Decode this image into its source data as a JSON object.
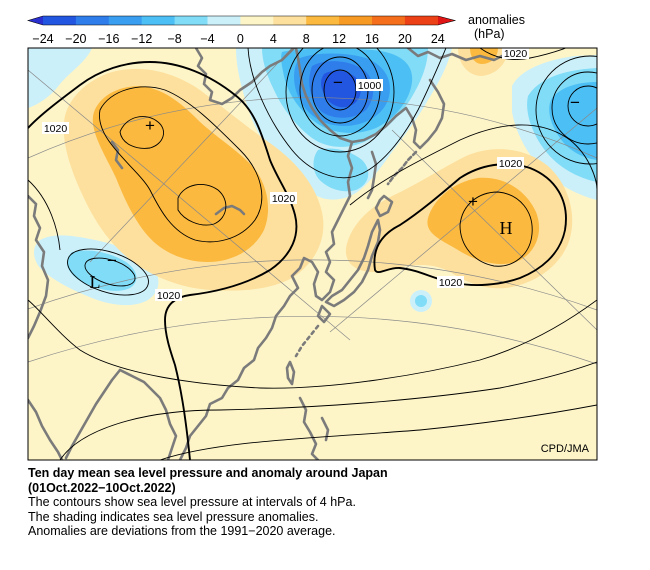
{
  "colorbar": {
    "title": "anomalies",
    "unit": "(hPa)",
    "ticks": [
      "−24",
      "−20",
      "−16",
      "−12",
      "−8",
      "−4",
      "0",
      "4",
      "8",
      "12",
      "16",
      "20",
      "24"
    ],
    "colors": [
      "#2a2fcf",
      "#2256e0",
      "#2f7deb",
      "#3a9ef0",
      "#4cbff5",
      "#80dcf7",
      "#cbf0fa",
      "#fdf5c8",
      "#fde09e",
      "#fbb93f",
      "#f79a24",
      "#f46e1c",
      "#ec4016",
      "#e01616"
    ]
  },
  "map": {
    "contour_labels": [
      "1020",
      "1000",
      "1020",
      "1020",
      "1020",
      "1020",
      "1020"
    ],
    "high_markers": [
      "H"
    ],
    "low_markers": [
      "L"
    ],
    "anomaly_max_markers": [
      "+",
      "+"
    ],
    "anomaly_min_markers": [
      "−",
      "−",
      "−"
    ],
    "credit": "CPD/JMA"
  },
  "caption": {
    "title": "Ten day mean sea level pressure and anomaly around Japan",
    "period": "(01Oct.2022−10Oct.2022)",
    "lines": [
      "The contours show sea level pressure at intervals of 4 hPa.",
      "The shading indicates sea level pressure anomalies.",
      "Anomalies are deviations from the 1991−2020 average."
    ]
  }
}
